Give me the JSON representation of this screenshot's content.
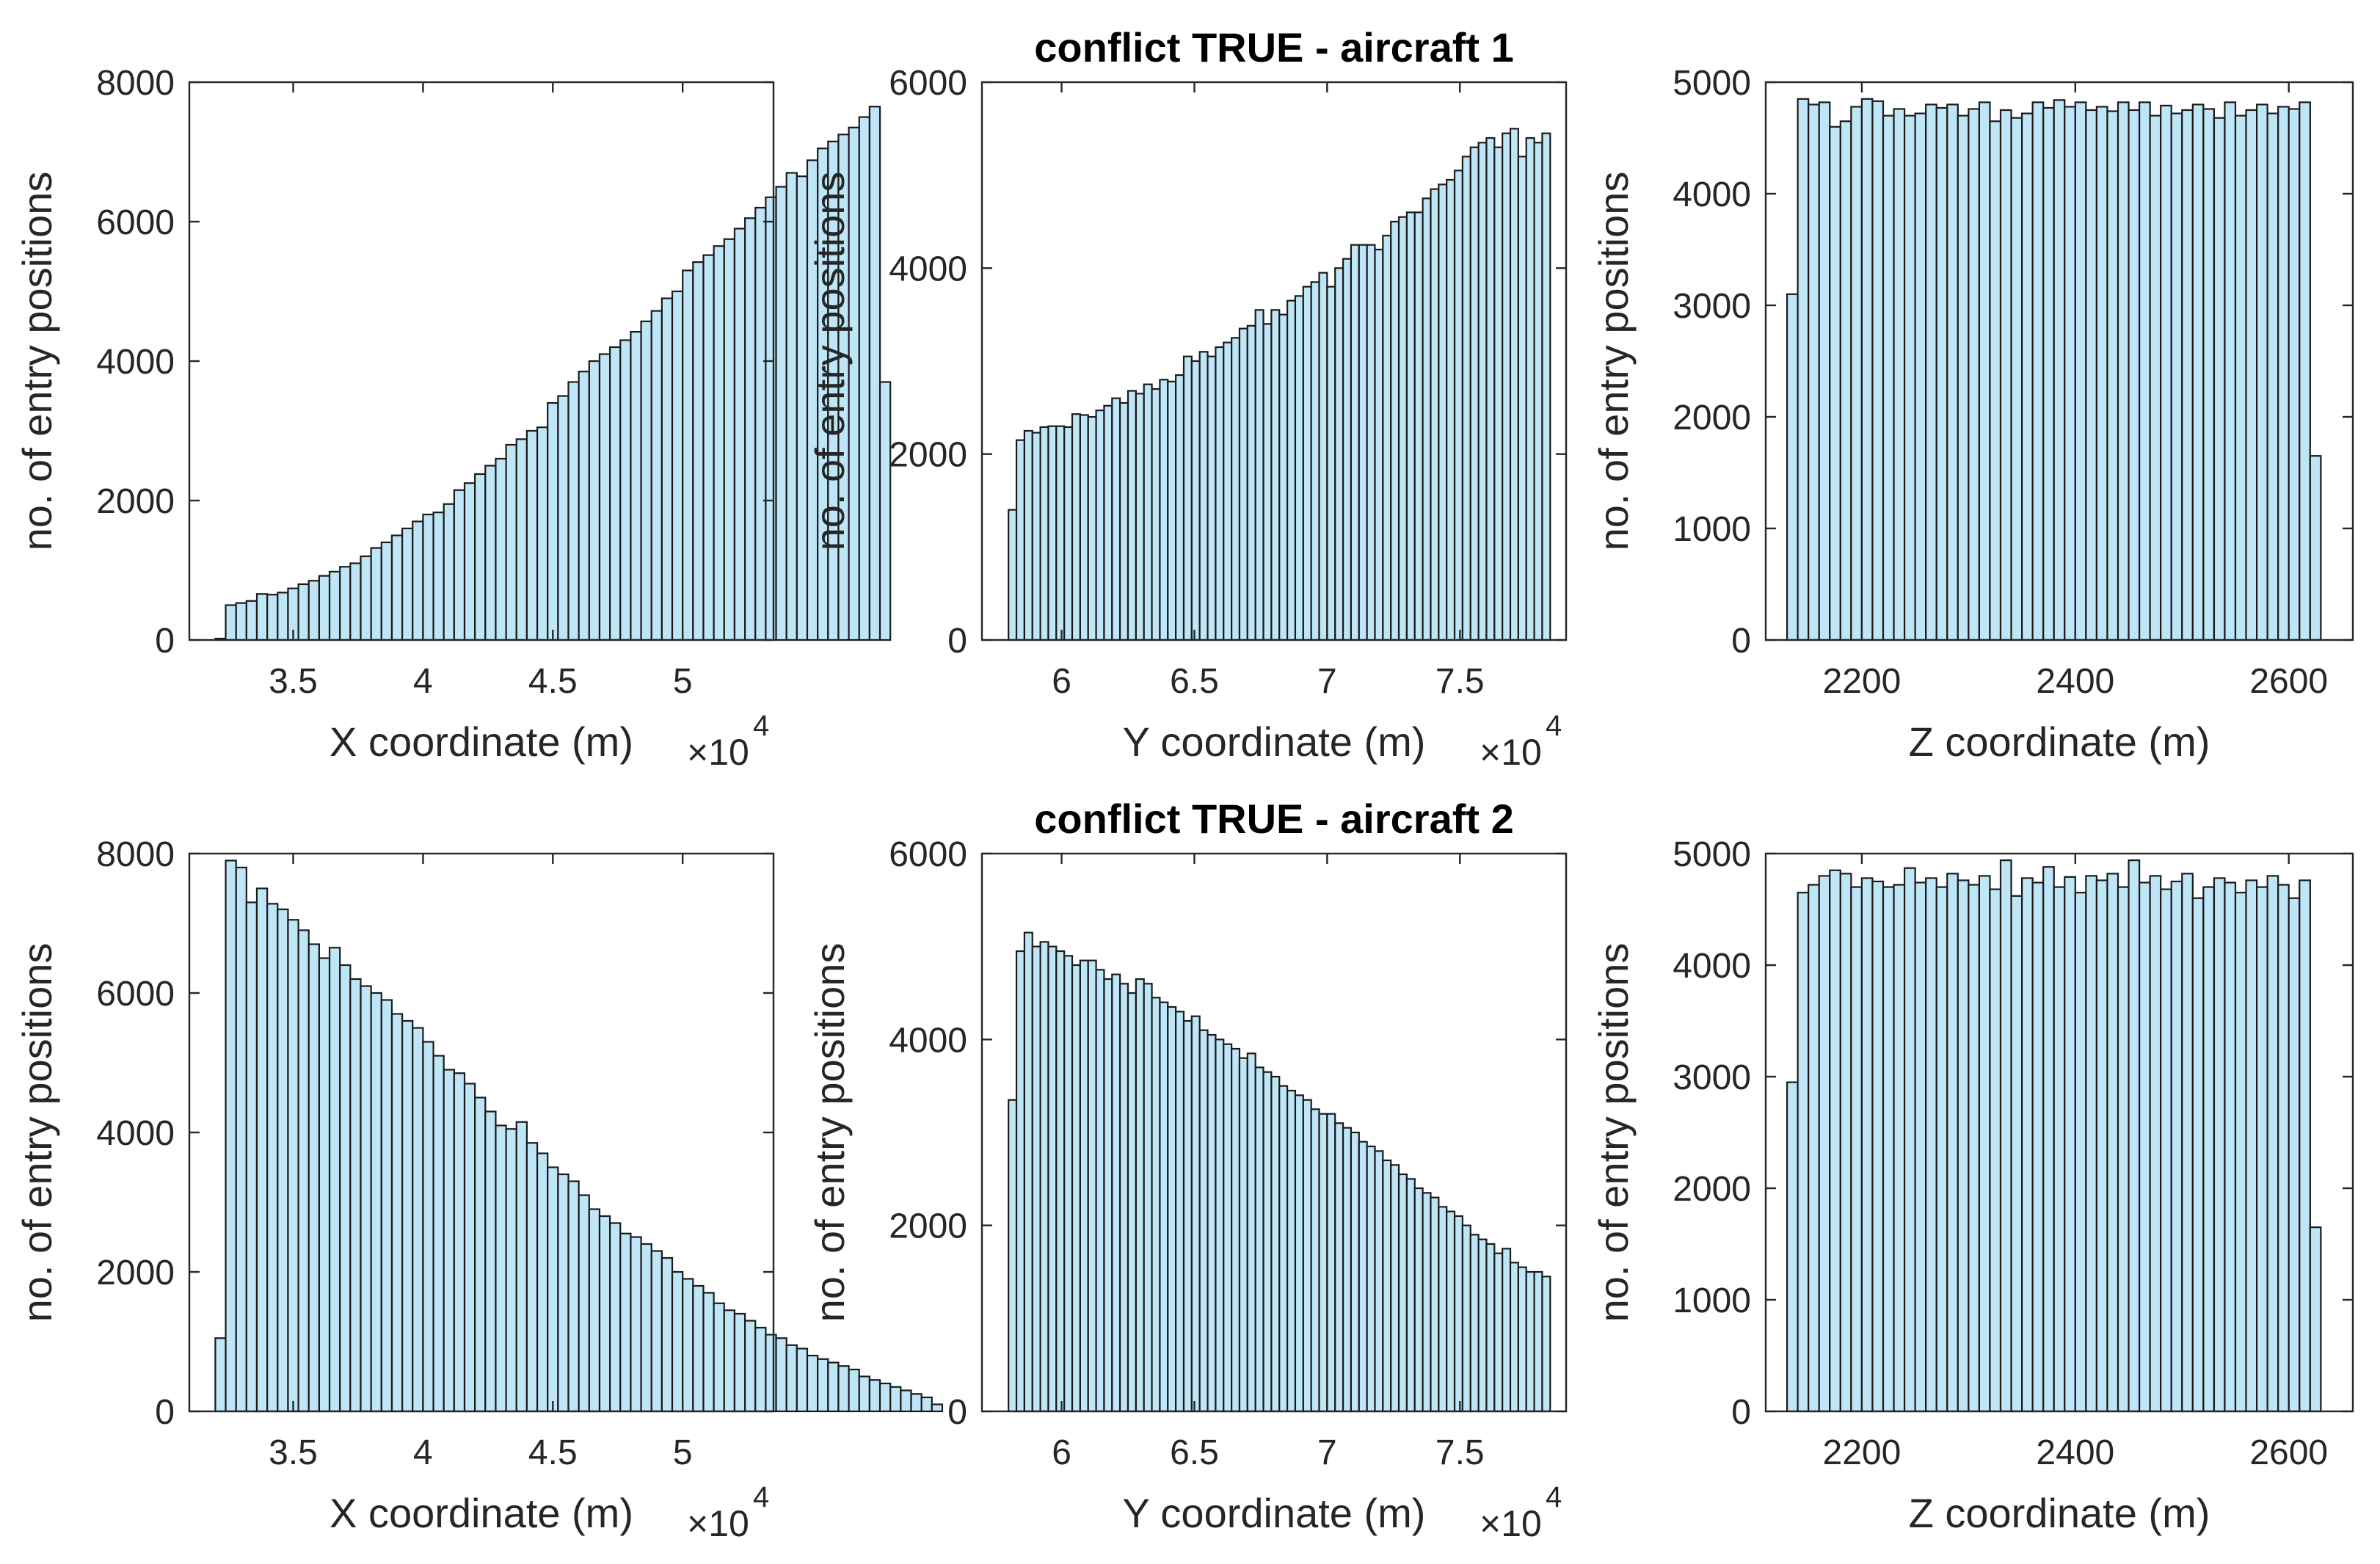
{
  "figure": {
    "row_titles": [
      "conflict TRUE - aircraft 1",
      "conflict TRUE - aircraft 2"
    ]
  },
  "colors": {
    "bar_fill": "#BFE6F7",
    "bar_edge": "#1a1a1a",
    "axis": "#262626",
    "text": "#262626"
  },
  "chart_data": [
    {
      "id": "aircraft1-x",
      "type": "bar",
      "title": "",
      "xlabel": "X coordinate (m)",
      "ylabel": "no. of entry positions",
      "x_exponent_label": "×10",
      "x_exponent": "4",
      "xlim": [
        3.1,
        5.35
      ],
      "ylim": [
        0,
        8000
      ],
      "xticks": [
        3.5,
        4,
        4.5,
        5
      ],
      "xtick_labels": [
        "3.5",
        "4",
        "4.5",
        "5"
      ],
      "yticks": [
        0,
        2000,
        4000,
        6000,
        8000
      ],
      "ytick_labels": [
        "0",
        "2000",
        "4000",
        "6000",
        "8000"
      ],
      "bin_start": 3.2,
      "bin_width": 0.04,
      "values": [
        20,
        500,
        530,
        560,
        660,
        650,
        680,
        740,
        800,
        850,
        920,
        980,
        1050,
        1100,
        1200,
        1320,
        1400,
        1500,
        1600,
        1700,
        1800,
        1830,
        1950,
        2150,
        2250,
        2380,
        2500,
        2600,
        2800,
        2880,
        3000,
        3050,
        3400,
        3500,
        3700,
        3850,
        4000,
        4100,
        4200,
        4300,
        4420,
        4570,
        4720,
        4900,
        5000,
        5300,
        5420,
        5520,
        5650,
        5750,
        5900,
        6050,
        6200,
        6350,
        6500,
        6700,
        6650,
        6880,
        7050,
        7150,
        7250,
        7350,
        7500,
        7650,
        3700
      ]
    },
    {
      "id": "aircraft1-y",
      "type": "bar",
      "title": "conflict TRUE - aircraft 1",
      "xlabel": "Y coordinate (m)",
      "ylabel": "no. of entry positions",
      "x_exponent_label": "×10",
      "x_exponent": "4",
      "xlim": [
        5.7,
        7.9
      ],
      "ylim": [
        0,
        6000
      ],
      "xticks": [
        6,
        6.5,
        7,
        7.5
      ],
      "xtick_labels": [
        "6",
        "6.5",
        "7",
        "7.5"
      ],
      "yticks": [
        0,
        2000,
        4000,
        6000
      ],
      "ytick_labels": [
        "0",
        "2000",
        "4000",
        "6000"
      ],
      "bin_start": 5.8,
      "bin_width": 0.03,
      "values": [
        1400,
        2150,
        2250,
        2230,
        2290,
        2300,
        2300,
        2290,
        2430,
        2420,
        2400,
        2470,
        2520,
        2600,
        2550,
        2680,
        2650,
        2750,
        2700,
        2800,
        2780,
        2850,
        3050,
        3000,
        3100,
        3050,
        3150,
        3200,
        3250,
        3350,
        3380,
        3550,
        3400,
        3550,
        3500,
        3650,
        3700,
        3800,
        3850,
        3950,
        3800,
        4000,
        4100,
        4250,
        4250,
        4250,
        4200,
        4350,
        4500,
        4550,
        4600,
        4600,
        4750,
        4850,
        4900,
        4950,
        5050,
        5200,
        5300,
        5350,
        5400,
        5300,
        5450,
        5500,
        5200,
        5400,
        5350,
        5450
      ]
    },
    {
      "id": "aircraft1-z",
      "type": "bar",
      "title": "",
      "xlabel": "Z coordinate (m)",
      "ylabel": "no. of entry positions",
      "xlim": [
        2110,
        2660
      ],
      "ylim": [
        0,
        5000
      ],
      "xticks": [
        2200,
        2400,
        2600
      ],
      "xtick_labels": [
        "2200",
        "2400",
        "2600"
      ],
      "yticks": [
        0,
        1000,
        2000,
        3000,
        4000,
        5000
      ],
      "ytick_labels": [
        "0",
        "1000",
        "2000",
        "3000",
        "4000",
        "5000"
      ],
      "bin_start": 2130,
      "bin_width": 10,
      "values": [
        3100,
        4850,
        4800,
        4820,
        4600,
        4650,
        4780,
        4850,
        4830,
        4700,
        4760,
        4700,
        4720,
        4800,
        4770,
        4800,
        4700,
        4760,
        4820,
        4650,
        4750,
        4680,
        4720,
        4820,
        4770,
        4840,
        4780,
        4820,
        4750,
        4780,
        4740,
        4820,
        4750,
        4820,
        4700,
        4790,
        4720,
        4750,
        4800,
        4760,
        4680,
        4820,
        4700,
        4750,
        4800,
        4720,
        4780,
        4760,
        4820,
        1650
      ]
    },
    {
      "id": "aircraft2-x",
      "type": "bar",
      "title": "",
      "xlabel": "X coordinate (m)",
      "ylabel": "no. of entry positions",
      "x_exponent_label": "×10",
      "x_exponent": "4",
      "xlim": [
        3.1,
        5.35
      ],
      "ylim": [
        0,
        8000
      ],
      "xticks": [
        3.5,
        4,
        4.5,
        5
      ],
      "xtick_labels": [
        "3.5",
        "4",
        "4.5",
        "5"
      ],
      "yticks": [
        0,
        2000,
        4000,
        6000,
        8000
      ],
      "ytick_labels": [
        "0",
        "2000",
        "4000",
        "6000",
        "8000"
      ],
      "bin_start": 3.2,
      "bin_width": 0.04,
      "values": [
        1050,
        7900,
        7800,
        7300,
        7500,
        7280,
        7200,
        7050,
        6900,
        6700,
        6500,
        6650,
        6400,
        6200,
        6100,
        6000,
        5900,
        5700,
        5600,
        5500,
        5300,
        5100,
        4900,
        4850,
        4700,
        4500,
        4300,
        4100,
        4050,
        4150,
        3850,
        3700,
        3500,
        3400,
        3300,
        3100,
        2900,
        2800,
        2700,
        2550,
        2500,
        2400,
        2300,
        2200,
        2000,
        1900,
        1800,
        1700,
        1550,
        1450,
        1400,
        1300,
        1200,
        1100,
        1050,
        950,
        900,
        800,
        750,
        700,
        650,
        600,
        500,
        450,
        400,
        350,
        300,
        250,
        200,
        100
      ]
    },
    {
      "id": "aircraft2-y",
      "type": "bar",
      "title": "conflict TRUE - aircraft 2",
      "xlabel": "Y coordinate (m)",
      "ylabel": "no. of entry positions",
      "x_exponent_label": "×10",
      "x_exponent": "4",
      "xlim": [
        5.7,
        7.9
      ],
      "ylim": [
        0,
        6000
      ],
      "xticks": [
        6,
        6.5,
        7,
        7.5
      ],
      "xtick_labels": [
        "6",
        "6.5",
        "7",
        "7.5"
      ],
      "yticks": [
        0,
        2000,
        4000,
        6000
      ],
      "ytick_labels": [
        "0",
        "2000",
        "4000",
        "6000"
      ],
      "bin_start": 5.8,
      "bin_width": 0.03,
      "values": [
        3350,
        4950,
        5150,
        5000,
        5050,
        5000,
        4950,
        4900,
        4800,
        4850,
        4850,
        4750,
        4650,
        4700,
        4600,
        4500,
        4650,
        4600,
        4450,
        4400,
        4350,
        4300,
        4200,
        4250,
        4100,
        4050,
        4000,
        3950,
        3900,
        3800,
        3850,
        3700,
        3650,
        3600,
        3500,
        3450,
        3400,
        3350,
        3250,
        3200,
        3200,
        3100,
        3050,
        3000,
        2900,
        2850,
        2800,
        2700,
        2650,
        2550,
        2500,
        2400,
        2350,
        2300,
        2200,
        2150,
        2100,
        2000,
        1900,
        1850,
        1800,
        1700,
        1750,
        1600,
        1550,
        1500,
        1500,
        1450
      ]
    },
    {
      "id": "aircraft2-z",
      "type": "bar",
      "title": "",
      "xlabel": "Z coordinate (m)",
      "ylabel": "no. of entry positions",
      "xlim": [
        2110,
        2660
      ],
      "ylim": [
        0,
        5000
      ],
      "xticks": [
        2200,
        2400,
        2600
      ],
      "xtick_labels": [
        "2200",
        "2400",
        "2600"
      ],
      "yticks": [
        0,
        1000,
        2000,
        3000,
        4000,
        5000
      ],
      "ytick_labels": [
        "0",
        "1000",
        "2000",
        "3000",
        "4000",
        "5000"
      ],
      "bin_start": 2130,
      "bin_width": 10,
      "values": [
        2950,
        4650,
        4720,
        4800,
        4850,
        4820,
        4700,
        4780,
        4750,
        4700,
        4720,
        4870,
        4740,
        4780,
        4700,
        4820,
        4760,
        4720,
        4800,
        4680,
        4940,
        4620,
        4780,
        4740,
        4880,
        4700,
        4790,
        4650,
        4800,
        4760,
        4820,
        4700,
        4940,
        4740,
        4800,
        4680,
        4750,
        4820,
        4600,
        4700,
        4780,
        4740,
        4650,
        4760,
        4700,
        4800,
        4720,
        4600,
        4760,
        1650
      ]
    }
  ]
}
